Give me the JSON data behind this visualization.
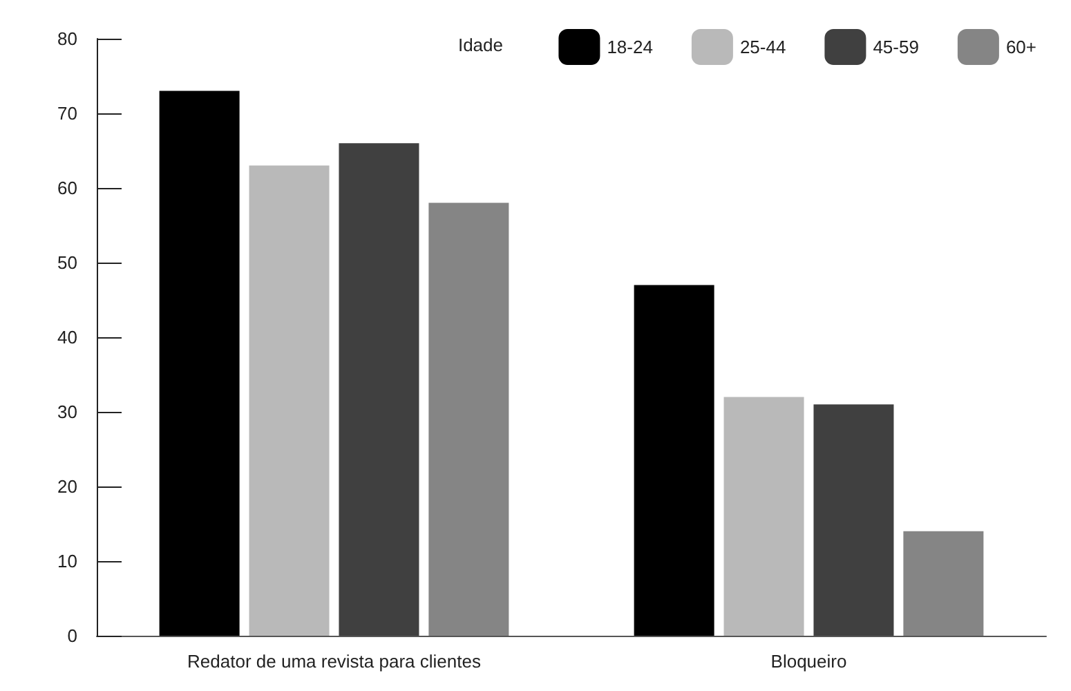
{
  "chart_data": {
    "type": "bar",
    "legend_title": "Idade",
    "legend": "top right",
    "grid": false,
    "categories": [
      "Redator de uma revista para clientes",
      "Bloqueiro"
    ],
    "ylim": [
      0,
      80
    ],
    "yticks": [
      0,
      10,
      20,
      30,
      40,
      50,
      60,
      70,
      80
    ],
    "series": [
      {
        "name": "18-24",
        "color": "#000000",
        "values": [
          73,
          47
        ]
      },
      {
        "name": "25-44",
        "color": "#b9b9b9",
        "values": [
          63,
          32
        ]
      },
      {
        "name": "45-59",
        "color": "#404040",
        "values": [
          66,
          31
        ]
      },
      {
        "name": "60+",
        "color": "#858585",
        "values": [
          58,
          14
        ]
      }
    ]
  }
}
